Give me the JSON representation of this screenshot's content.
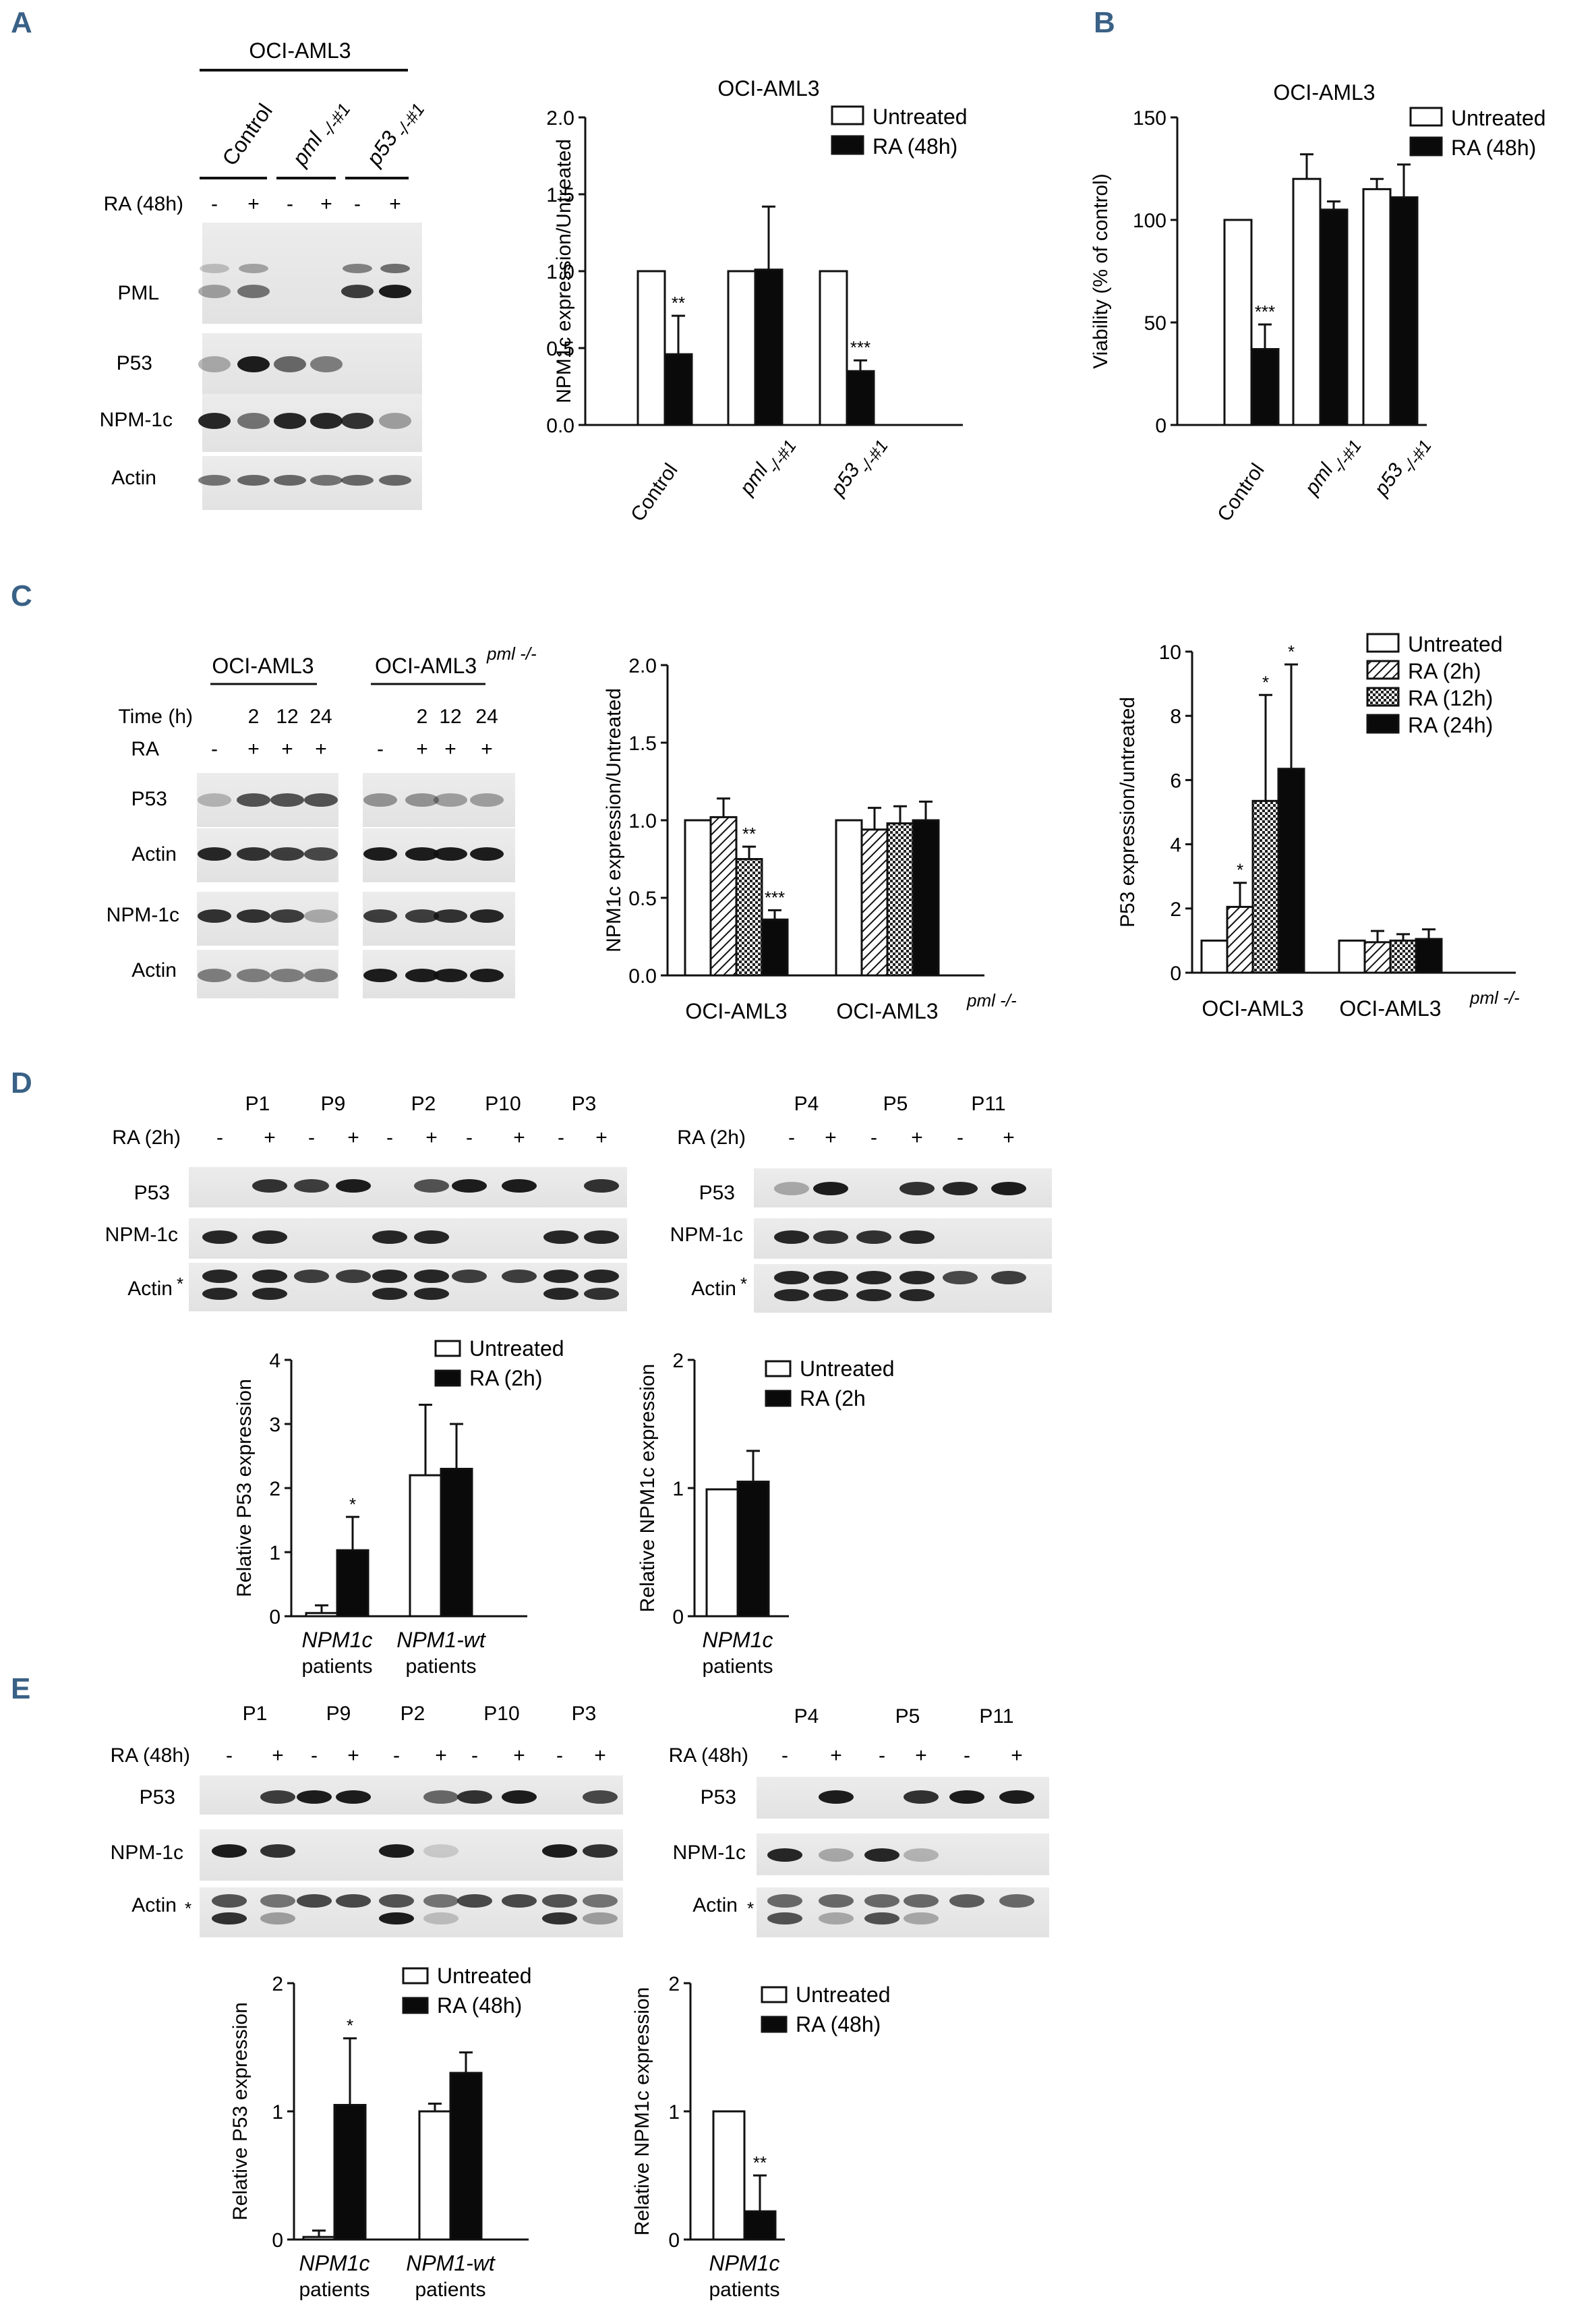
{
  "panel_letters": [
    "A",
    "B",
    "C",
    "D",
    "E"
  ],
  "colors": {
    "letter": "#3a6186",
    "ink": "#111111",
    "bar_black": "#0a0a0a",
    "bar_white": "#ffffff"
  },
  "blots": {
    "A": {
      "cell_line": "OCI-AML3",
      "columns": [
        {
          "name": "Control"
        },
        {
          "name": "pml",
          "superscript": "-/-#1"
        },
        {
          "name": "p53",
          "superscript": "-/-#1"
        }
      ],
      "condition_label": "RA (48h)",
      "treatment_signs": [
        "-",
        "+",
        "-",
        "+",
        "-",
        "+"
      ],
      "rows": [
        "PML",
        "P53",
        "NPM-1c",
        "Actin"
      ]
    },
    "C": {
      "groups": [
        {
          "name": "OCI-AML3"
        },
        {
          "name": "OCI-AML3",
          "superscript": "pml -/-"
        }
      ],
      "time_label": "Time (h)",
      "times": [
        "2",
        "12",
        "24",
        "2",
        "12",
        "24"
      ],
      "ra_label": "RA",
      "ra_signs": [
        "-",
        "+",
        "+",
        "+",
        "-",
        "+",
        "+",
        "+"
      ],
      "rows": [
        "P53",
        "Actin",
        "NPM-1c",
        "Actin"
      ]
    },
    "D_left": {
      "patients": [
        "P1",
        "P9",
        "P2",
        "P10",
        "P3"
      ],
      "condition_label": "RA (2h)",
      "signs": [
        "-",
        "+",
        "-",
        "+",
        "-",
        "+",
        "-",
        "+",
        "-",
        "+"
      ],
      "rows": [
        "P53",
        "NPM-1c",
        "Actin"
      ],
      "asterisk": "*"
    },
    "D_right": {
      "patients": [
        "P4",
        "P5",
        "P11"
      ],
      "condition_label": "RA (2h)",
      "signs": [
        "-",
        "+",
        "-",
        "+",
        "-",
        "+"
      ],
      "rows": [
        "P53",
        "NPM-1c",
        "Actin"
      ],
      "asterisk": "*"
    },
    "E_left": {
      "patients": [
        "P1",
        "P9",
        "P2",
        "P10",
        "P3"
      ],
      "condition_label": "RA (48h)",
      "signs": [
        "-",
        "+",
        "-",
        "+",
        "-",
        "+",
        "-",
        "+",
        "-",
        "+"
      ],
      "rows": [
        "P53",
        "NPM-1c",
        "Actin"
      ],
      "asterisk": "*"
    },
    "E_right": {
      "patients": [
        "P4",
        "P5",
        "P11"
      ],
      "condition_label": "RA (48h)",
      "signs": [
        "-",
        "+",
        "-",
        "+",
        "-",
        "+"
      ],
      "rows": [
        "P53",
        "NPM-1c",
        "Actin"
      ],
      "asterisk": "*"
    }
  },
  "chart_data": [
    {
      "id": "A-chart",
      "type": "bar",
      "title": "OCI-AML3",
      "ylabel": "NPM1c expression/Untreated",
      "ylim": [
        0,
        2.0
      ],
      "yticks": [
        "0.0",
        "0.5",
        "1.0",
        "1.5",
        "2.0"
      ],
      "categories": [
        {
          "name": "Control"
        },
        {
          "name": "pml",
          "superscript": "-/-#1"
        },
        {
          "name": "p53",
          "superscript": "-/-#1"
        }
      ],
      "series": [
        {
          "name": "Untreated",
          "fill": "white",
          "values": [
            1.0,
            1.0,
            1.0
          ],
          "errors": [
            0,
            0,
            0
          ],
          "sig": [
            "",
            "",
            ""
          ]
        },
        {
          "name": "RA (48h)",
          "fill": "black",
          "values": [
            0.46,
            1.01,
            0.35
          ],
          "errors": [
            0.25,
            0.41,
            0.07
          ],
          "sig": [
            "**",
            "",
            "***"
          ]
        }
      ],
      "legend": "top-right"
    },
    {
      "id": "B-chart",
      "type": "bar",
      "title": "OCI-AML3",
      "ylabel": "Viability (% of control)",
      "ylim": [
        0,
        150
      ],
      "yticks": [
        "0",
        "50",
        "100",
        "150"
      ],
      "categories": [
        {
          "name": "Control"
        },
        {
          "name": "pml",
          "superscript": "-/-#1"
        },
        {
          "name": "p53",
          "superscript": "-/-#1"
        }
      ],
      "series": [
        {
          "name": "Untreated",
          "fill": "white",
          "values": [
            100,
            120,
            115
          ],
          "errors": [
            0,
            12,
            5
          ],
          "sig": [
            "",
            "",
            ""
          ]
        },
        {
          "name": "RA (48h)",
          "fill": "black",
          "values": [
            37,
            105,
            111
          ],
          "errors": [
            12,
            4,
            16
          ],
          "sig": [
            "***",
            "",
            ""
          ]
        }
      ],
      "legend": "top-right"
    },
    {
      "id": "C-npm",
      "type": "bar",
      "title": "",
      "ylabel": "NPM1c expression/Untreated",
      "ylim": [
        0,
        2.0
      ],
      "yticks": [
        "0.0",
        "0.5",
        "1.0",
        "1.5",
        "2.0"
      ],
      "categories": [
        {
          "name": "OCI-AML3"
        },
        {
          "name": "OCI-AML3",
          "superscript": "pml -/-"
        }
      ],
      "series": [
        {
          "name": "Untreated",
          "fill": "white",
          "values": [
            1.0,
            1.0
          ],
          "errors": [
            0,
            0
          ],
          "sig": [
            "",
            ""
          ]
        },
        {
          "name": "RA (2h)",
          "fill": "hatch",
          "values": [
            1.02,
            0.94
          ],
          "errors": [
            0.12,
            0.14
          ],
          "sig": [
            "",
            ""
          ]
        },
        {
          "name": "RA (12h)",
          "fill": "checker",
          "values": [
            0.75,
            0.98
          ],
          "errors": [
            0.08,
            0.11
          ],
          "sig": [
            "**",
            ""
          ]
        },
        {
          "name": "RA (24h)",
          "fill": "black",
          "values": [
            0.36,
            1.0
          ],
          "errors": [
            0.06,
            0.12
          ],
          "sig": [
            "***",
            ""
          ]
        }
      ],
      "legend": "none"
    },
    {
      "id": "C-p53",
      "type": "bar",
      "title": "",
      "ylabel": "P53 expression/untreated",
      "ylim": [
        0,
        10
      ],
      "yticks": [
        "0",
        "2",
        "4",
        "6",
        "8",
        "10"
      ],
      "categories": [
        {
          "name": "OCI-AML3"
        },
        {
          "name": "OCI-AML3",
          "superscript": "pml -/-"
        }
      ],
      "series": [
        {
          "name": "Untreated",
          "fill": "white",
          "values": [
            1.0,
            1.0
          ],
          "errors": [
            0,
            0
          ],
          "sig": [
            "",
            ""
          ]
        },
        {
          "name": "RA (2h)",
          "fill": "hatch",
          "values": [
            2.05,
            0.95
          ],
          "errors": [
            0.75,
            0.35
          ],
          "sig": [
            "*",
            ""
          ]
        },
        {
          "name": "RA (12h)",
          "fill": "checker",
          "values": [
            5.35,
            1.0
          ],
          "errors": [
            3.3,
            0.2
          ],
          "sig": [
            "*",
            ""
          ]
        },
        {
          "name": "RA (24h)",
          "fill": "black",
          "values": [
            6.35,
            1.05
          ],
          "errors": [
            3.25,
            0.3
          ],
          "sig": [
            "*",
            ""
          ]
        }
      ],
      "legend": "top-right"
    },
    {
      "id": "D-p53",
      "type": "bar",
      "title": "",
      "ylabel": "Relative P53 expression",
      "ylim": [
        0,
        4
      ],
      "yticks": [
        "0",
        "1",
        "2",
        "3",
        "4"
      ],
      "categories": [
        {
          "name": "NPM1c",
          "line2": "patients"
        },
        {
          "name": "NPM1-wt",
          "line2": "patients"
        }
      ],
      "series": [
        {
          "name": "Untreated",
          "fill": "white",
          "values": [
            0.05,
            2.2
          ],
          "errors": [
            0.12,
            1.1
          ],
          "sig": [
            "",
            ""
          ]
        },
        {
          "name": "RA (2h)",
          "fill": "black",
          "values": [
            1.03,
            2.3
          ],
          "errors": [
            0.52,
            0.7
          ],
          "sig": [
            "*",
            ""
          ]
        }
      ],
      "legend": "top-right"
    },
    {
      "id": "D-npm",
      "type": "bar",
      "title": "",
      "ylabel": "Relative NPM1c expression",
      "ylim": [
        0,
        2
      ],
      "yticks": [
        "0",
        "1",
        "2"
      ],
      "categories": [
        {
          "name": "NPM1c",
          "line2": "patients"
        }
      ],
      "series": [
        {
          "name": "Untreated",
          "fill": "white",
          "values": [
            0.99
          ],
          "errors": [
            0
          ],
          "sig": [
            ""
          ]
        },
        {
          "name": "RA (2h",
          "fill": "black",
          "values": [
            1.05
          ],
          "errors": [
            0.24
          ],
          "sig": [
            ""
          ]
        }
      ],
      "legend": "top-right"
    },
    {
      "id": "E-p53",
      "type": "bar",
      "title": "",
      "ylabel": "Relative P53 expression",
      "ylim": [
        0,
        2
      ],
      "yticks": [
        "0",
        "1",
        "2"
      ],
      "categories": [
        {
          "name": "NPM1c",
          "line2": "patients"
        },
        {
          "name": "NPM1-wt",
          "line2": "patients"
        }
      ],
      "series": [
        {
          "name": "Untreated",
          "fill": "white",
          "values": [
            0.02,
            1.0
          ],
          "errors": [
            0.05,
            0.06
          ],
          "sig": [
            "",
            ""
          ]
        },
        {
          "name": "RA (48h)",
          "fill": "black",
          "values": [
            1.05,
            1.3
          ],
          "errors": [
            0.52,
            0.16
          ],
          "sig": [
            "*",
            ""
          ]
        }
      ],
      "legend": "top-right"
    },
    {
      "id": "E-npm",
      "type": "bar",
      "title": "",
      "ylabel": "Relative NPM1c expression",
      "ylim": [
        0,
        2
      ],
      "yticks": [
        "0",
        "1",
        "2"
      ],
      "categories": [
        {
          "name": "NPM1c",
          "line2": "patients"
        }
      ],
      "series": [
        {
          "name": "Untreated",
          "fill": "white",
          "values": [
            1.0
          ],
          "errors": [
            0
          ],
          "sig": [
            ""
          ]
        },
        {
          "name": "RA (48h)",
          "fill": "black",
          "values": [
            0.22
          ],
          "errors": [
            0.28
          ],
          "sig": [
            "**"
          ]
        }
      ],
      "legend": "top-right"
    }
  ]
}
